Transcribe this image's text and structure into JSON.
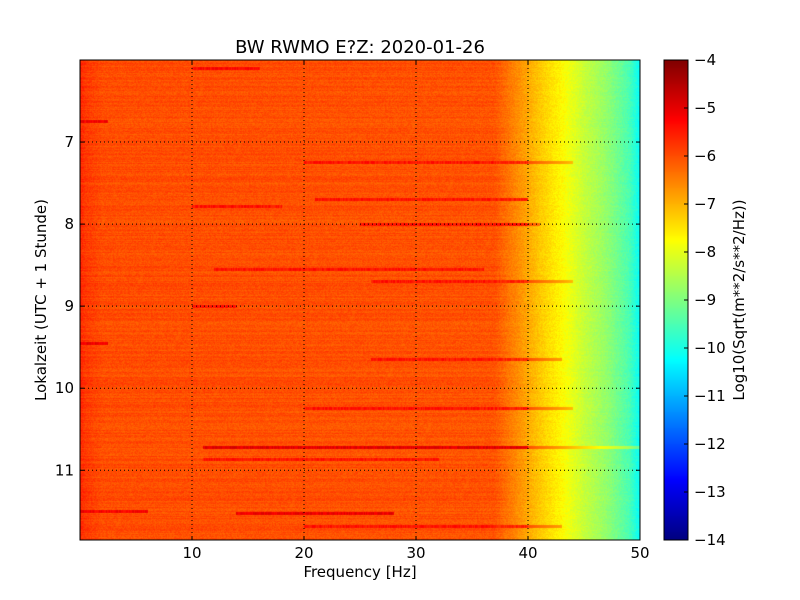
{
  "chart_data": {
    "type": "heatmap",
    "title": "BW RWMO E?Z: 2020-01-26",
    "xlabel": "Frequency [Hz]",
    "ylabel": "Lokalzeit (UTC + 1 Stunde)",
    "colorbar_label": "Log10(Sqrt(m**2/s**2/Hz))",
    "colormap": "jet",
    "xlim": [
      0,
      50
    ],
    "ylim": [
      11.85,
      6.0
    ],
    "x_ticks": [
      10,
      20,
      30,
      40,
      50
    ],
    "x_tick_labels": [
      "10",
      "20",
      "30",
      "40",
      "50"
    ],
    "y_ticks": [
      7,
      8,
      9,
      10,
      11
    ],
    "y_tick_labels": [
      "7",
      "8",
      "9",
      "10",
      "11"
    ],
    "clim": [
      -14,
      -4
    ],
    "colorbar_ticks": [
      -4,
      -5,
      -6,
      -7,
      -8,
      -9,
      -10,
      -11,
      -12,
      -13,
      -14
    ],
    "colorbar_tick_labels": [
      "−4",
      "−5",
      "−6",
      "−7",
      "−8",
      "−9",
      "−10",
      "−11",
      "−12",
      "−13",
      "−14"
    ],
    "grid": true,
    "spectral_profile": [
      {
        "freq": 0.0,
        "value": -5.6
      },
      {
        "freq": 0.5,
        "value": -5.8
      },
      {
        "freq": 2,
        "value": -6.0
      },
      {
        "freq": 37,
        "value": -6.05
      },
      {
        "freq": 39,
        "value": -6.6
      },
      {
        "freq": 41,
        "value": -7.2
      },
      {
        "freq": 43,
        "value": -7.7
      },
      {
        "freq": 45,
        "value": -8.3
      },
      {
        "freq": 47,
        "value": -8.8
      },
      {
        "freq": 49,
        "value": -9.5
      },
      {
        "freq": 50,
        "value": -10.2
      }
    ],
    "bands": [
      {
        "time": 6.1,
        "f_start": 10,
        "f_end": 16,
        "value": -5.3
      },
      {
        "time": 6.75,
        "f_start": 0,
        "f_end": 2.5,
        "value": -5.2
      },
      {
        "time": 7.25,
        "f_start": 20,
        "f_end": 44,
        "value": -5.6
      },
      {
        "time": 7.7,
        "f_start": 21,
        "f_end": 40,
        "value": -5.5
      },
      {
        "time": 7.78,
        "f_start": 10,
        "f_end": 18,
        "value": -5.6
      },
      {
        "time": 8.0,
        "f_start": 25,
        "f_end": 41,
        "value": -5.4
      },
      {
        "time": 8.55,
        "f_start": 12,
        "f_end": 36,
        "value": -5.6
      },
      {
        "time": 8.7,
        "f_start": 26,
        "f_end": 44,
        "value": -5.6
      },
      {
        "time": 9.0,
        "f_start": 10,
        "f_end": 14,
        "value": -5.6
      },
      {
        "time": 9.45,
        "f_start": 0,
        "f_end": 2.5,
        "value": -5.1
      },
      {
        "time": 9.65,
        "f_start": 26,
        "f_end": 43,
        "value": -5.6
      },
      {
        "time": 10.25,
        "f_start": 20,
        "f_end": 44,
        "value": -5.5
      },
      {
        "time": 10.72,
        "f_start": 11,
        "f_end": 50,
        "value": -5.0
      },
      {
        "time": 10.87,
        "f_start": 11,
        "f_end": 32,
        "value": -5.5
      },
      {
        "time": 11.5,
        "f_start": 0,
        "f_end": 6,
        "value": -5.2
      },
      {
        "time": 11.53,
        "f_start": 14,
        "f_end": 28,
        "value": -5.1
      },
      {
        "time": 11.68,
        "f_start": 20,
        "f_end": 43,
        "value": -5.6
      }
    ]
  }
}
